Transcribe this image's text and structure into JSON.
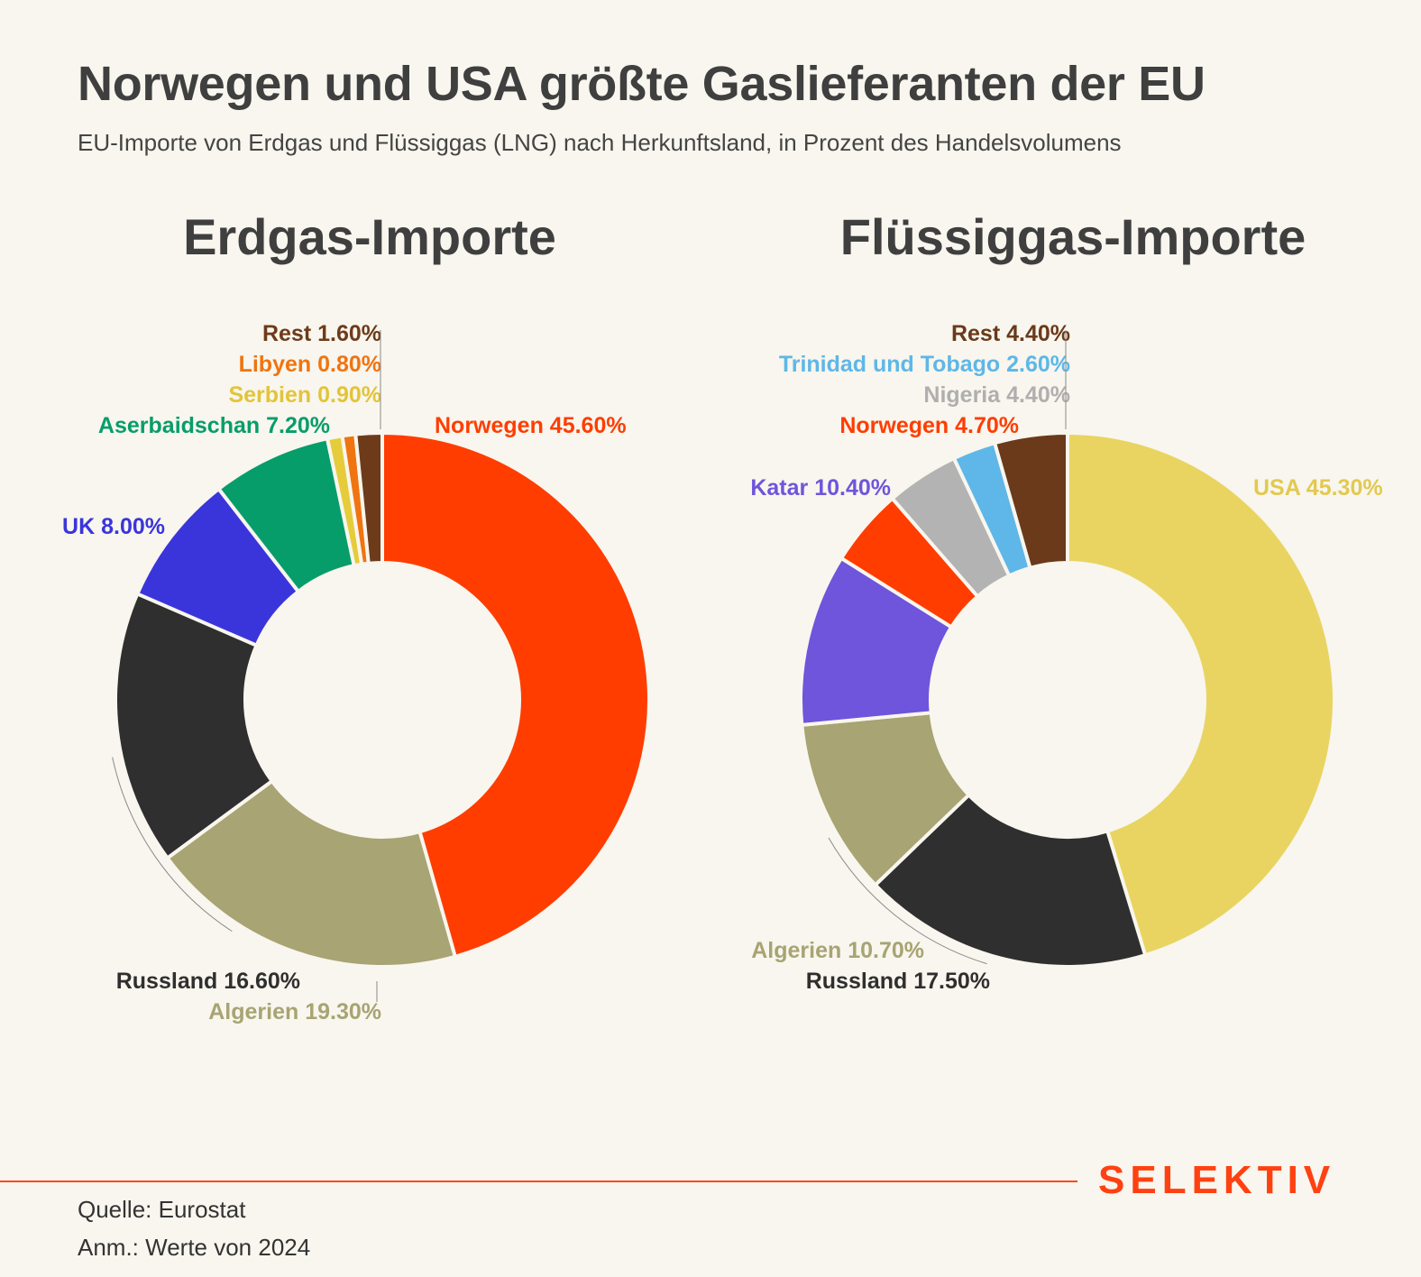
{
  "header": {
    "title": "Norwegen und USA größte Gaslieferanten der EU",
    "subtitle": "EU-Importe von Erdgas und Flüssiggas (LNG) nach Herkunftsland, in Prozent des Handelsvolumens"
  },
  "footer": {
    "brand": "SELEKTIV",
    "source": "Quelle: Eurostat",
    "note": "Anm.: Werte von 2024"
  },
  "chart_data": [
    {
      "type": "pie",
      "title": "Erdgas-Importe",
      "slices": [
        {
          "label": "Norwegen",
          "value": 45.6,
          "display": "45.60%",
          "color": "#ff3d00",
          "label_color": "#ff3d00"
        },
        {
          "label": "Algerien",
          "value": 19.3,
          "display": "19.30%",
          "color": "#a8a473",
          "label_color": "#a8a473"
        },
        {
          "label": "Russland",
          "value": 16.6,
          "display": "16.60%",
          "color": "#2f2f2f",
          "label_color": "#2f2f2f"
        },
        {
          "label": "UK",
          "value": 8.0,
          "display": "8.00%",
          "color": "#3a35db",
          "label_color": "#3a35db"
        },
        {
          "label": "Aserbaidschan",
          "value": 7.2,
          "display": "7.20%",
          "color": "#079d6b",
          "label_color": "#079d6b"
        },
        {
          "label": "Serbien",
          "value": 0.9,
          "display": "0.90%",
          "color": "#e6cc3a",
          "label_color": "#e3c43a"
        },
        {
          "label": "Libyen",
          "value": 0.8,
          "display": "0.80%",
          "color": "#f07410",
          "label_color": "#f07410"
        },
        {
          "label": "Rest",
          "value": 1.6,
          "display": "1.60%",
          "color": "#6e3b1a",
          "label_color": "#6e3b1a"
        }
      ]
    },
    {
      "type": "pie",
      "title": "Flüssiggas-Importe",
      "slices": [
        {
          "label": "USA",
          "value": 45.3,
          "display": "45.30%",
          "color": "#e9d462",
          "label_color": "#e3c94f"
        },
        {
          "label": "Russland",
          "value": 17.5,
          "display": "17.50%",
          "color": "#2f2f2f",
          "label_color": "#2f2f2f"
        },
        {
          "label": "Algerien",
          "value": 10.7,
          "display": "10.70%",
          "color": "#a8a473",
          "label_color": "#a8a473"
        },
        {
          "label": "Katar",
          "value": 10.4,
          "display": "10.40%",
          "color": "#6e55dc",
          "label_color": "#6e55dc"
        },
        {
          "label": "Norwegen",
          "value": 4.7,
          "display": "4.70%",
          "color": "#ff3d00",
          "label_color": "#ff3d00"
        },
        {
          "label": "Nigeria",
          "value": 4.4,
          "display": "4.40%",
          "color": "#b4b3b3",
          "label_color": "#b0afaf"
        },
        {
          "label": "Trinidad und Tobago",
          "value": 2.6,
          "display": "2.60%",
          "color": "#5eb7e8",
          "label_color": "#5eb7e8"
        },
        {
          "label": "Rest",
          "value": 4.4,
          "display": "4.40%",
          "color": "#6a3a1a",
          "label_color": "#6a3a1a"
        }
      ]
    }
  ]
}
